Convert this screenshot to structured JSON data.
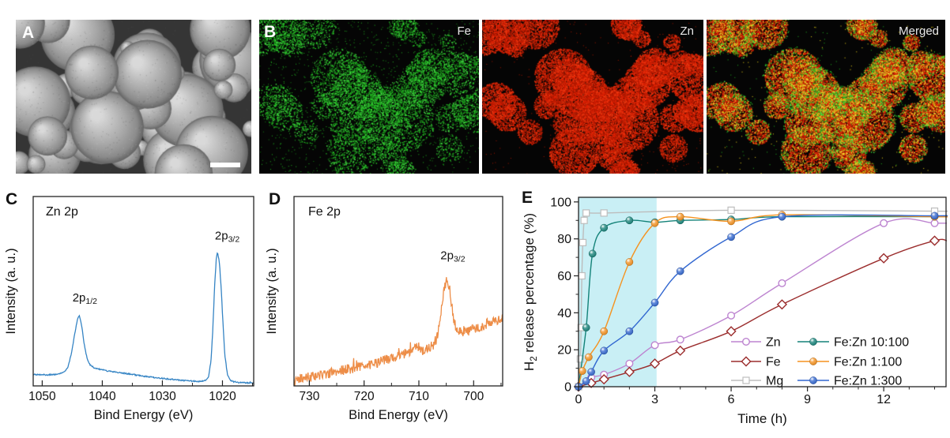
{
  "panels": {
    "a": {
      "label": "A",
      "kind": "sem-image",
      "background": "#353535",
      "sphere_light": "#d9d9d9",
      "sphere_dark": "#646464",
      "scale_bar_present": true
    },
    "b": {
      "label": "B",
      "maps": [
        {
          "name": "Fe",
          "dot_color": "#25c125"
        },
        {
          "name": "Zn",
          "dot_color": "#d81e04"
        },
        {
          "name": "Merged",
          "dot_colors": [
            "#d81e04",
            "#e8d41c",
            "#25c125"
          ]
        }
      ]
    },
    "c": {
      "label": "C"
    },
    "d": {
      "label": "D"
    },
    "e": {
      "label": "E"
    }
  },
  "chart_data": [
    {
      "id": "zn2p",
      "type": "line",
      "kind": "spectrum",
      "annotation": "Zn 2p",
      "xlabel": "Bind Energy (eV)",
      "ylabel": "Intensity (a. u.)",
      "x_axis_reversed": true,
      "xlim": [
        1051.5,
        1014.8
      ],
      "xticks": [
        1050,
        1040,
        1030,
        1020
      ],
      "xminor_step": 5,
      "line_color": "#3584c4",
      "noise_amplitude": 0.005,
      "peak_labels": [
        {
          "main": "2p",
          "sub": "1/2",
          "x": 1042.9,
          "y": 0.63
        },
        {
          "main": "2p",
          "sub": "3/2",
          "x": 1019.2,
          "y": 1.1
        }
      ],
      "profile": [
        [
          1051.5,
          0.075
        ],
        [
          1049,
          0.072
        ],
        [
          1047.5,
          0.076
        ],
        [
          1046.5,
          0.088
        ],
        [
          1045.8,
          0.12
        ],
        [
          1045.2,
          0.22
        ],
        [
          1044.6,
          0.38
        ],
        [
          1044.1,
          0.5
        ],
        [
          1043.8,
          0.52
        ],
        [
          1043.4,
          0.44
        ],
        [
          1043,
          0.3
        ],
        [
          1042.5,
          0.19
        ],
        [
          1042,
          0.145
        ],
        [
          1041.3,
          0.125
        ],
        [
          1040.5,
          0.115
        ],
        [
          1039.5,
          0.105
        ],
        [
          1038,
          0.095
        ],
        [
          1036,
          0.082
        ],
        [
          1034,
          0.068
        ],
        [
          1032,
          0.055
        ],
        [
          1030,
          0.045
        ],
        [
          1028,
          0.035
        ],
        [
          1026,
          0.028
        ],
        [
          1024.5,
          0.024
        ],
        [
          1023.5,
          0.022
        ],
        [
          1022.8,
          0.028
        ],
        [
          1022.3,
          0.06
        ],
        [
          1021.9,
          0.18
        ],
        [
          1021.6,
          0.42
        ],
        [
          1021.3,
          0.75
        ],
        [
          1021,
          0.97
        ],
        [
          1020.8,
          1
        ],
        [
          1020.5,
          0.92
        ],
        [
          1020.2,
          0.72
        ],
        [
          1019.9,
          0.45
        ],
        [
          1019.6,
          0.22
        ],
        [
          1019.2,
          0.08
        ],
        [
          1018.8,
          0.035
        ],
        [
          1018.2,
          0.02
        ],
        [
          1017.5,
          0.015
        ],
        [
          1016.5,
          0.012
        ],
        [
          1015.5,
          0.01
        ],
        [
          1014.8,
          0.01
        ]
      ]
    },
    {
      "id": "fe2p",
      "type": "line",
      "kind": "spectrum",
      "annotation": "Fe 2p",
      "xlabel": "Bind Energy (eV)",
      "ylabel": "Intensity (a. u.)",
      "x_axis_reversed": true,
      "xlim": [
        732.8,
        694.7
      ],
      "xticks": [
        730,
        720,
        710,
        700
      ],
      "xminor_step": 5,
      "line_color": "#ed8d47",
      "noise_amplitude": 0.04,
      "peak_labels": [
        {
          "main": "2p",
          "sub": "3/2",
          "x": 703.8,
          "y": 0.99
        }
      ],
      "profile": [
        [
          732.8,
          0.02
        ],
        [
          731,
          0.045
        ],
        [
          729,
          0.065
        ],
        [
          727,
          0.085
        ],
        [
          725,
          0.1
        ],
        [
          723,
          0.12
        ],
        [
          721,
          0.14
        ],
        [
          719,
          0.16
        ],
        [
          717,
          0.18
        ],
        [
          715,
          0.21
        ],
        [
          713,
          0.24
        ],
        [
          711,
          0.27
        ],
        [
          710,
          0.3
        ],
        [
          709.3,
          0.27
        ],
        [
          708.5,
          0.29
        ],
        [
          707.8,
          0.3
        ],
        [
          707.2,
          0.32
        ],
        [
          706.5,
          0.4
        ],
        [
          705.9,
          0.6
        ],
        [
          705.3,
          0.78
        ],
        [
          704.8,
          0.85
        ],
        [
          704.4,
          0.76
        ],
        [
          704,
          0.62
        ],
        [
          703.5,
          0.48
        ],
        [
          703,
          0.43
        ],
        [
          702.3,
          0.41
        ],
        [
          701.5,
          0.43
        ],
        [
          700.7,
          0.42
        ],
        [
          700,
          0.44
        ],
        [
          699.2,
          0.45
        ],
        [
          698.4,
          0.46
        ],
        [
          697.6,
          0.48
        ],
        [
          696.8,
          0.49
        ],
        [
          695.8,
          0.51
        ],
        [
          694.7,
          0.53
        ]
      ]
    },
    {
      "id": "h2",
      "type": "line",
      "kind": "kinetics",
      "xlabel": "Time (h)",
      "ylabel_parts": [
        "H",
        "2",
        " release percentage (%)"
      ],
      "xlim": [
        0,
        14.45
      ],
      "ylim": [
        0,
        102.5
      ],
      "xticks": [
        0,
        3,
        6,
        9,
        12
      ],
      "xminor_step": 1,
      "yticks": [
        0,
        20,
        40,
        60,
        80,
        100
      ],
      "yminor_step": 10,
      "grid": false,
      "legend_position": "bottom-right",
      "highlight": {
        "x0": 0,
        "x1": 3.07,
        "color": "#c9eff5"
      },
      "series": [
        {
          "name": "Zn",
          "color": "#bd84d0",
          "marker": "circle-open",
          "points": [
            [
              0,
              0
            ],
            [
              0.5,
              5
            ],
            [
              1,
              6.5
            ],
            [
              2,
              12.5
            ],
            [
              3,
              22.5
            ],
            [
              4,
              25.5
            ],
            [
              6,
              38.5
            ],
            [
              8,
              56
            ],
            [
              12,
              88.5
            ],
            [
              14,
              88.5
            ]
          ]
        },
        {
          "name": "Fe",
          "color": "#9b2d2d",
          "marker": "diamond-open",
          "points": [
            [
              0,
              0
            ],
            [
              0.5,
              2
            ],
            [
              1,
              4
            ],
            [
              2,
              8
            ],
            [
              3,
              12.5
            ],
            [
              4,
              19.5
            ],
            [
              6,
              30
            ],
            [
              8,
              44.5
            ],
            [
              12,
              69.5
            ],
            [
              14,
              79
            ]
          ]
        },
        {
          "name": "Mg",
          "color": "#bdbdbd",
          "marker": "square-open",
          "points": [
            [
              0,
              0
            ],
            [
              0.07,
              15
            ],
            [
              0.1,
              32
            ],
            [
              0.13,
              60
            ],
            [
              0.17,
              78
            ],
            [
              0.22,
              90
            ],
            [
              0.3,
              94
            ],
            [
              1,
              94
            ],
            [
              6,
              95.5
            ],
            [
              14,
              95
            ]
          ]
        },
        {
          "name": "Fe:Zn 10:100",
          "color": "#138278",
          "marker": "ball",
          "points": [
            [
              0,
              0
            ],
            [
              0.3,
              32
            ],
            [
              0.55,
              72
            ],
            [
              1,
              86
            ],
            [
              2,
              90
            ],
            [
              3,
              89
            ],
            [
              4,
              90
            ],
            [
              6,
              90.5
            ],
            [
              8,
              92
            ],
            [
              14,
              92
            ]
          ]
        },
        {
          "name": "Fe:Zn 1:100",
          "color": "#f6921e",
          "marker": "ball",
          "points": [
            [
              0,
              0
            ],
            [
              0.15,
              8.5
            ],
            [
              0.4,
              16
            ],
            [
              1,
              30
            ],
            [
              2,
              67.5
            ],
            [
              3,
              88.5
            ],
            [
              4,
              92
            ],
            [
              6,
              89.5
            ],
            [
              8,
              93
            ],
            [
              14,
              92
            ]
          ]
        },
        {
          "name": "Fe:Zn 1:300",
          "color": "#3066d0",
          "marker": "ball",
          "points": [
            [
              0,
              0
            ],
            [
              0.3,
              3
            ],
            [
              0.5,
              8
            ],
            [
              1,
              19.5
            ],
            [
              2,
              30
            ],
            [
              3,
              45.5
            ],
            [
              4,
              62.5
            ],
            [
              6,
              81
            ],
            [
              8,
              92
            ],
            [
              14,
              92.5
            ]
          ]
        }
      ],
      "legend": {
        "col1": [
          "Zn",
          "Fe",
          "Mg"
        ],
        "col2": [
          "Fe:Zn 10:100",
          "Fe:Zn 1:100",
          "Fe:Zn 1:300"
        ]
      }
    }
  ]
}
